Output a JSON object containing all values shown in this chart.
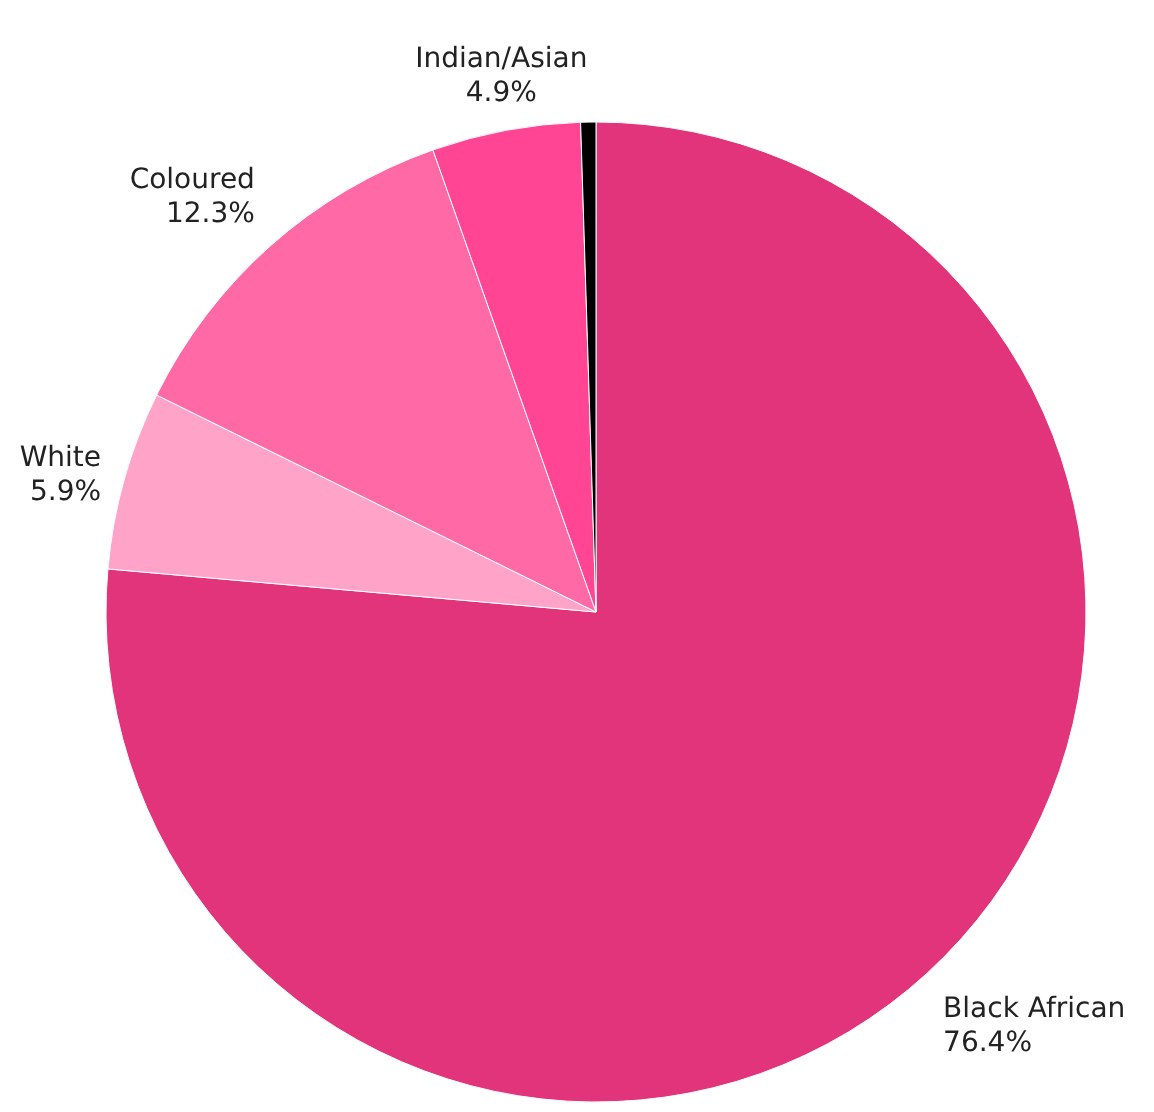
{
  "chart_data": {
    "type": "pie",
    "categories": [
      "Black African",
      "White",
      "Coloured",
      "Indian/Asian",
      null
    ],
    "values": [
      76.4,
      5.9,
      12.3,
      4.9,
      0.5
    ],
    "colors": [
      "#e2347a",
      "#ffa3c9",
      "#ff6aa6",
      "#ff4594",
      "#000000"
    ],
    "value_labels": [
      "76.4%",
      "5.9%",
      "12.3%",
      "4.9%",
      null
    ]
  }
}
